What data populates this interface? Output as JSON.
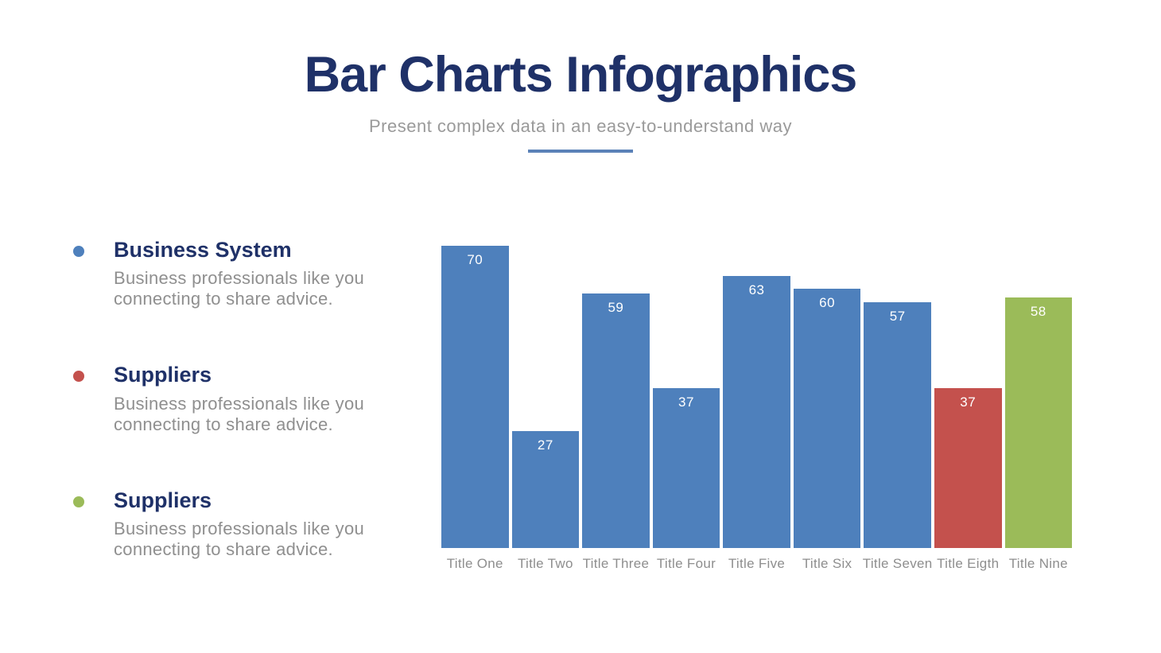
{
  "header": {
    "title": "Bar Charts Infographics",
    "subtitle": "Present complex data in an easy-to-understand way",
    "title_color": "#1F3168",
    "subtitle_color": "#9A9A9A",
    "divider_color": "#5B82B8"
  },
  "legend": {
    "items": [
      {
        "bullet_color": "#4E80BC",
        "title": "Business System",
        "desc_lines": [
          "Business professionals like you",
          "connecting to share advice."
        ]
      },
      {
        "bullet_color": "#C4514D",
        "title": "Suppliers",
        "desc_lines": [
          "Business professionals like you",
          "connecting to share advice."
        ]
      },
      {
        "bullet_color": "#9BBB59",
        "title": "Suppliers",
        "desc_lines": [
          "Business professionals like you",
          "connecting to share advice."
        ]
      }
    ]
  },
  "chart_data": {
    "type": "bar",
    "title": "",
    "xlabel": "",
    "ylabel": "",
    "categories": [
      "Title One",
      "Title Two",
      "Title Three",
      "Title Four",
      "Title Five",
      "Title Six",
      "Title Seven",
      "Title Eigth",
      "Title Nine"
    ],
    "values": [
      70,
      27,
      59,
      37,
      63,
      60,
      57,
      37,
      58
    ],
    "bar_colors": [
      "#4E80BC",
      "#4E80BC",
      "#4E80BC",
      "#4E80BC",
      "#4E80BC",
      "#4E80BC",
      "#4E80BC",
      "#C4514D",
      "#9BBB59"
    ],
    "value_label_color": "#FFFFFF",
    "category_label_color": "#8E8E8E",
    "ylim": [
      0,
      70
    ],
    "grid": false,
    "axes_visible": false,
    "value_labels_position": "inside-top",
    "legend_position": "left"
  }
}
